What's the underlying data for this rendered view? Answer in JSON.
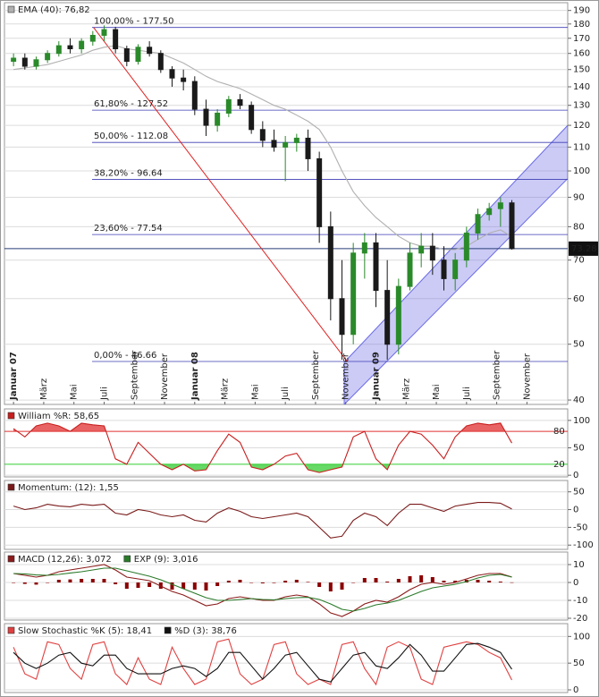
{
  "chart_data": [
    {
      "type": "candlestick",
      "log_scale": true,
      "ylim": [
        39.3,
        196
      ],
      "yticks": [
        40,
        50,
        60,
        70,
        80,
        90,
        100,
        110,
        120,
        130,
        140,
        150,
        160,
        170,
        180,
        190
      ],
      "xlim": [
        -0.6,
        36.7
      ],
      "xticks": [
        {
          "value": 0,
          "label": "Januar 07"
        },
        {
          "value": 2,
          "label": "März"
        },
        {
          "value": 4,
          "label": "Mai"
        },
        {
          "value": 6,
          "label": "Juli"
        },
        {
          "value": 8,
          "label": "September"
        },
        {
          "value": 10,
          "label": "November"
        },
        {
          "value": 12,
          "label": "Januar 08"
        },
        {
          "value": 14,
          "label": "März"
        },
        {
          "value": 16,
          "label": "Mai"
        },
        {
          "value": 18,
          "label": "Juli"
        },
        {
          "value": 20,
          "label": "September"
        },
        {
          "value": 22,
          "label": "November"
        },
        {
          "value": 24,
          "label": "Januar 09"
        },
        {
          "value": 26,
          "label": "März"
        },
        {
          "value": 28,
          "label": "Mai"
        },
        {
          "value": 30,
          "label": "Juli"
        },
        {
          "value": 32,
          "label": "September"
        },
        {
          "value": 34,
          "label": "November"
        }
      ],
      "x": [
        0,
        0.75,
        1.5,
        2.25,
        3,
        3.75,
        4.5,
        5.25,
        6,
        6.75,
        7.5,
        8.25,
        9,
        9.75,
        10.5,
        11.25,
        12,
        12.75,
        13.5,
        14.25,
        15,
        15.75,
        16.5,
        17.25,
        18,
        18.75,
        19.5,
        20.25,
        21,
        21.75,
        22.5,
        23.25,
        24,
        24.75,
        25.5,
        26.25,
        27,
        27.75,
        28.5,
        29.25,
        30,
        30.75,
        31.5,
        32.25,
        33
      ],
      "open": [
        155,
        157,
        152,
        156,
        160,
        165,
        163,
        168,
        172,
        176,
        163,
        155,
        164,
        160,
        150,
        145,
        143,
        128,
        120,
        126,
        133,
        130,
        118,
        113,
        110,
        112,
        114,
        105,
        80,
        60,
        52,
        72,
        75,
        62,
        50,
        63,
        72,
        74,
        70,
        65,
        70,
        78,
        84,
        86,
        88
      ],
      "high": [
        160,
        160,
        158,
        162,
        168,
        170,
        170,
        175,
        179,
        178,
        165,
        166,
        168,
        162,
        152,
        150,
        146,
        133,
        128,
        135,
        136,
        132,
        122,
        118,
        115,
        116,
        118,
        108,
        85,
        70,
        75,
        78,
        78,
        70,
        65,
        75,
        78,
        78,
        74,
        72,
        80,
        86,
        88,
        90,
        89
      ],
      "low": [
        152,
        150,
        150,
        154,
        158,
        160,
        160,
        165,
        168,
        160,
        152,
        153,
        158,
        148,
        140,
        138,
        125,
        115,
        117,
        124,
        128,
        116,
        110,
        108,
        96,
        108,
        100,
        75,
        55,
        47,
        50,
        65,
        58,
        47,
        48,
        62,
        68,
        66,
        62,
        62,
        68,
        76,
        82,
        80,
        73
      ],
      "close": [
        157,
        152,
        156,
        160,
        165,
        163,
        168,
        172,
        176,
        163,
        155,
        164,
        160,
        150,
        145,
        143,
        128,
        120,
        126,
        133,
        130,
        118,
        113,
        110,
        112,
        114,
        105,
        80,
        60,
        52,
        72,
        75,
        62,
        50,
        63,
        72,
        74,
        70,
        65,
        70,
        78,
        84,
        86,
        88,
        73.28
      ],
      "up_color": "#2a8a2a",
      "down_color": "#1a1a1a",
      "series": [
        {
          "name": "EMA (40): 76,82",
          "color": "#b0b0b0",
          "values": [
            150,
            151,
            152,
            153,
            155,
            157,
            159,
            162,
            164,
            165,
            163,
            162,
            161,
            160,
            157,
            154,
            150,
            146,
            143,
            141,
            139,
            136,
            133,
            130,
            128,
            125,
            122,
            118,
            110,
            100,
            92,
            87,
            83,
            80,
            77,
            75,
            74,
            74,
            73,
            73,
            74,
            76,
            78,
            79,
            76.82
          ]
        }
      ],
      "levels": [
        {
          "value": 177.5,
          "label": "100,00% - 177.50"
        },
        {
          "value": 127.52,
          "label": "61,80% - 127.52"
        },
        {
          "value": 112.08,
          "label": "50,00% - 112.08"
        },
        {
          "value": 96.64,
          "label": "38,20% - 96.64"
        },
        {
          "value": 77.54,
          "label": "23,60% - 77.54"
        },
        {
          "value": 46.66,
          "label": "0,00% - 46.66"
        }
      ],
      "level_color": "#3c3cb4",
      "last_price": 73.28,
      "trend_line": {
        "color": "#e02020",
        "points": [
          [
            5.3,
            177.5
          ],
          [
            22.1,
            46.66
          ]
        ]
      },
      "channel": {
        "color": "#6a6ae6",
        "points": [
          [
            21.9,
            39.3
          ],
          [
            36.7,
            97
          ],
          [
            36.7,
            120
          ],
          [
            21.9,
            46.5
          ]
        ]
      }
    },
    {
      "type": "line",
      "ylim": [
        -3,
        121
      ],
      "yticks": [
        0,
        50,
        100
      ],
      "xlim": [
        -0.6,
        36.7
      ],
      "grid": true,
      "x": [
        0,
        0.75,
        1.5,
        2.25,
        3,
        3.75,
        4.5,
        5.25,
        6,
        6.75,
        7.5,
        8.25,
        9,
        9.75,
        10.5,
        11.25,
        12,
        12.75,
        13.5,
        14.25,
        15,
        15.75,
        16.5,
        17.25,
        18,
        18.75,
        19.5,
        20.25,
        21,
        21.75,
        22.5,
        23.25,
        24,
        24.75,
        25.5,
        26.25,
        27,
        27.75,
        28.5,
        29.25,
        30,
        30.75,
        31.5,
        32.25,
        33
      ],
      "series": [
        {
          "name": "William %R: 58,65",
          "color": "#c81e1e",
          "values": [
            85,
            70,
            90,
            95,
            90,
            80,
            95,
            92,
            90,
            30,
            20,
            60,
            40,
            20,
            10,
            20,
            8,
            10,
            45,
            75,
            60,
            15,
            10,
            20,
            35,
            40,
            10,
            5,
            10,
            15,
            70,
            80,
            30,
            10,
            55,
            80,
            75,
            55,
            30,
            70,
            90,
            95,
            92,
            95,
            58.65
          ]
        }
      ],
      "reference_lines": [
        {
          "value": 80,
          "color": "#e03030"
        },
        {
          "value": 20,
          "color": "#33cc33"
        }
      ]
    },
    {
      "type": "line",
      "ylim": [
        -112,
        82
      ],
      "yticks": [
        -100,
        -50,
        0,
        50
      ],
      "xlim": [
        -0.6,
        36.7
      ],
      "grid": true,
      "x": [
        0,
        0.75,
        1.5,
        2.25,
        3,
        3.75,
        4.5,
        5.25,
        6,
        6.75,
        7.5,
        8.25,
        9,
        9.75,
        10.5,
        11.25,
        12,
        12.75,
        13.5,
        14.25,
        15,
        15.75,
        16.5,
        17.25,
        18,
        18.75,
        19.5,
        20.25,
        21,
        21.75,
        22.5,
        23.25,
        24,
        24.75,
        25.5,
        26.25,
        27,
        27.75,
        28.5,
        29.25,
        30,
        30.75,
        31.5,
        32.25,
        33
      ],
      "series": [
        {
          "name": "Momentum: (12): 1,55",
          "color": "#7a1a1a",
          "values": [
            10,
            0,
            5,
            15,
            10,
            8,
            15,
            12,
            15,
            -10,
            -15,
            0,
            -5,
            -15,
            -20,
            -15,
            -30,
            -35,
            -10,
            5,
            -5,
            -20,
            -25,
            -20,
            -15,
            -10,
            -20,
            -50,
            -80,
            -75,
            -30,
            -10,
            -20,
            -45,
            -10,
            15,
            15,
            5,
            -5,
            10,
            15,
            20,
            20,
            18,
            1.55
          ]
        }
      ]
    },
    {
      "type": "line",
      "ylim": [
        -21,
        17
      ],
      "yticks": [
        -20,
        -10,
        0,
        10
      ],
      "xlim": [
        -0.6,
        36.7
      ],
      "grid": true,
      "x": [
        0,
        0.75,
        1.5,
        2.25,
        3,
        3.75,
        4.5,
        5.25,
        6,
        6.75,
        7.5,
        8.25,
        9,
        9.75,
        10.5,
        11.25,
        12,
        12.75,
        13.5,
        14.25,
        15,
        15.75,
        16.5,
        17.25,
        18,
        18.75,
        19.5,
        20.25,
        21,
        21.75,
        22.5,
        23.25,
        24,
        24.75,
        25.5,
        26.25,
        27,
        27.75,
        28.5,
        29.25,
        30,
        30.75,
        31.5,
        32.25,
        33
      ],
      "histogram": {
        "color": "#8b0000",
        "values": [
          0,
          -0.8,
          -1.2,
          0,
          1.5,
          1.7,
          2,
          2,
          2,
          -1,
          -3.5,
          -3,
          -2.5,
          -3.5,
          -4,
          -3.5,
          -4,
          -4.5,
          -2,
          1,
          1.5,
          0,
          -0.5,
          -0.3,
          1,
          1.5,
          0.3,
          -2.5,
          -5,
          -4,
          0,
          2.5,
          2.5,
          0.5,
          2,
          3.5,
          4,
          3,
          1,
          1,
          1.5,
          1.5,
          1,
          0.5,
          0.06
        ]
      },
      "series": [
        {
          "name": "MACD (12,26): 3,072",
          "color": "#8b1a1a",
          "values": [
            5,
            4,
            3,
            4,
            6,
            7,
            8,
            9,
            10,
            7,
            3,
            2,
            1,
            -2,
            -5,
            -7,
            -10,
            -13,
            -12,
            -9,
            -8,
            -9,
            -10,
            -10,
            -8,
            -7,
            -8,
            -12,
            -17,
            -19,
            -16,
            -12,
            -10,
            -11,
            -8,
            -4,
            -1,
            0,
            -1,
            0,
            2,
            4,
            5,
            5,
            3.072
          ]
        },
        {
          "name": "EXP (9): 3,016",
          "color": "#2a7a2a",
          "values": [
            5,
            4.8,
            4.2,
            4,
            4.5,
            5.3,
            6,
            7,
            8,
            8,
            6.5,
            5,
            3.5,
            1.5,
            -1,
            -3.5,
            -6,
            -8.5,
            -10,
            -10,
            -9.5,
            -9,
            -9.5,
            -9.7,
            -9,
            -8.5,
            -8.3,
            -9.5,
            -12,
            -15,
            -16,
            -14.5,
            -12.5,
            -11.5,
            -10,
            -7.5,
            -5,
            -3,
            -2,
            -1,
            0.5,
            2.5,
            4,
            4.5,
            3.016
          ]
        }
      ]
    },
    {
      "type": "line",
      "ylim": [
        -5,
        124
      ],
      "yticks": [
        0,
        50,
        100
      ],
      "xlim": [
        -0.6,
        36.7
      ],
      "grid": true,
      "x": [
        0,
        0.75,
        1.5,
        2.25,
        3,
        3.75,
        4.5,
        5.25,
        6,
        6.75,
        7.5,
        8.25,
        9,
        9.75,
        10.5,
        11.25,
        12,
        12.75,
        13.5,
        14.25,
        15,
        15.75,
        16.5,
        17.25,
        18,
        18.75,
        19.5,
        20.25,
        21,
        21.75,
        22.5,
        23.25,
        24,
        24.75,
        25.5,
        26.25,
        27,
        27.75,
        28.5,
        29.25,
        30,
        30.75,
        31.5,
        32.25,
        33
      ],
      "series": [
        {
          "name": "Slow Stochastic %K (5): 18,41",
          "color": "#e04040",
          "values": [
            80,
            30,
            20,
            90,
            85,
            40,
            20,
            85,
            90,
            30,
            10,
            60,
            20,
            10,
            80,
            40,
            10,
            20,
            90,
            95,
            30,
            10,
            20,
            85,
            90,
            30,
            10,
            20,
            10,
            85,
            90,
            40,
            10,
            80,
            90,
            80,
            20,
            10,
            80,
            85,
            90,
            85,
            70,
            60,
            18.41
          ]
        },
        {
          "name": "%D (3): 38,76",
          "color": "#111111",
          "values": [
            70,
            50,
            40,
            50,
            65,
            70,
            50,
            45,
            65,
            65,
            40,
            30,
            30,
            30,
            40,
            45,
            40,
            25,
            40,
            70,
            70,
            45,
            20,
            40,
            65,
            70,
            45,
            20,
            15,
            40,
            65,
            70,
            45,
            40,
            60,
            85,
            65,
            35,
            35,
            60,
            85,
            87,
            80,
            70,
            38.76
          ]
        }
      ]
    }
  ]
}
